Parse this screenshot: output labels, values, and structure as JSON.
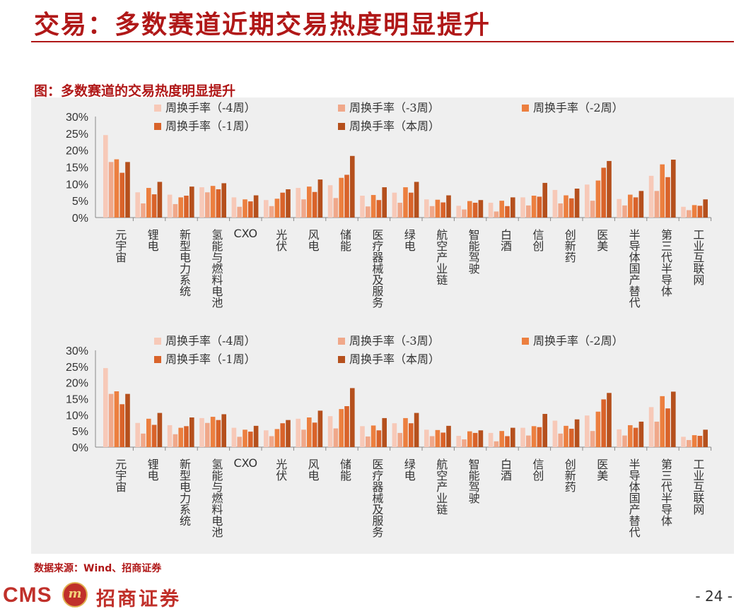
{
  "header": {
    "title": "交易：多数赛道近期交易热度明显提升"
  },
  "figure": {
    "title": "图：多数赛道的交易热度明显提升"
  },
  "footer": {
    "source": "数据来源：Wind、招商证券",
    "logo_text": "CMS",
    "logo_emblem": "m",
    "logo_cn": "招商证券",
    "page": "- 24 -"
  },
  "colors": {
    "title_red": "#b01818",
    "series": [
      "#f7c9b8",
      "#f0a88a",
      "#ec7f3f",
      "#d9632a",
      "#b5501d"
    ]
  },
  "chart_data": [
    {
      "type": "bar",
      "title": "",
      "xlabel": "",
      "ylabel": "",
      "ylim": [
        0,
        30
      ],
      "yticks": [
        "0%",
        "5%",
        "10%",
        "15%",
        "20%",
        "25%",
        "30%"
      ],
      "grid": false,
      "legend": "top",
      "categories": [
        "元宇宙",
        "锂电",
        "新型电力系统",
        "氢能与燃料电池",
        "CXO",
        "光伏",
        "风电",
        "储能",
        "医疗器械及服务",
        "绿电",
        "航空产业链",
        "智能驾驶",
        "白酒",
        "信创",
        "创新药",
        "医美",
        "半导体国产替代",
        "第三代半导体",
        "工业互联网"
      ],
      "series": [
        {
          "name": "周换手率（-4周）",
          "values": [
            24.5,
            7.5,
            6.8,
            9.0,
            6.0,
            5.2,
            8.8,
            9.6,
            6.5,
            7.4,
            5.4,
            3.5,
            4.4,
            6.0,
            8.2,
            9.8,
            5.5,
            12.4,
            3.2
          ]
        },
        {
          "name": "周换手率（-3周）",
          "values": [
            16.5,
            4.2,
            4.0,
            7.5,
            3.2,
            3.4,
            5.4,
            5.8,
            3.3,
            4.4,
            3.4,
            2.4,
            1.8,
            3.6,
            4.2,
            5.0,
            3.6,
            7.9,
            2.2
          ]
        },
        {
          "name": "周换手率（-2周）",
          "values": [
            17.3,
            8.8,
            6.0,
            9.4,
            5.4,
            5.6,
            9.2,
            11.8,
            6.7,
            9.0,
            5.3,
            4.9,
            5.0,
            6.5,
            6.6,
            11.0,
            6.8,
            15.8,
            3.7
          ]
        },
        {
          "name": "周换手率（-1周）",
          "values": [
            13.3,
            6.9,
            6.5,
            8.4,
            4.8,
            7.4,
            7.6,
            12.7,
            5.2,
            7.4,
            4.5,
            4.4,
            3.4,
            6.2,
            5.7,
            14.8,
            6.0,
            12.0,
            3.5
          ]
        },
        {
          "name": "周换手率（本周）",
          "values": [
            16.5,
            10.6,
            9.2,
            10.2,
            6.6,
            8.4,
            11.3,
            18.3,
            9.0,
            10.6,
            6.6,
            5.2,
            6.0,
            10.3,
            8.6,
            16.8,
            7.9,
            17.2,
            5.4
          ]
        }
      ]
    },
    {
      "type": "bar",
      "title": "",
      "xlabel": "",
      "ylabel": "",
      "ylim": [
        0,
        30
      ],
      "yticks": [
        "0%",
        "5%",
        "10%",
        "15%",
        "20%",
        "25%",
        "30%"
      ],
      "grid": false,
      "legend": "top",
      "categories": [
        "元宇宙",
        "锂电",
        "新型电力系统",
        "氢能与燃料电池",
        "CXO",
        "光伏",
        "风电",
        "储能",
        "医疗器械及服务",
        "绿电",
        "航空产业链",
        "智能驾驶",
        "白酒",
        "信创",
        "创新药",
        "医美",
        "半导体国产替代",
        "第三代半导体",
        "工业互联网"
      ],
      "series": [
        {
          "name": "周换手率（-4周）",
          "values": [
            24.5,
            7.5,
            6.8,
            9.0,
            6.0,
            5.2,
            8.8,
            9.6,
            6.5,
            7.4,
            5.4,
            3.5,
            4.4,
            6.0,
            8.2,
            9.8,
            5.5,
            12.4,
            3.2
          ]
        },
        {
          "name": "周换手率（-3周）",
          "values": [
            16.5,
            4.2,
            4.0,
            7.5,
            3.2,
            3.4,
            5.4,
            5.8,
            3.3,
            4.4,
            3.4,
            2.4,
            1.8,
            3.6,
            4.2,
            5.0,
            3.6,
            7.9,
            2.2
          ]
        },
        {
          "name": "周换手率（-2周）",
          "values": [
            17.3,
            8.8,
            6.0,
            9.4,
            5.4,
            5.6,
            9.2,
            11.8,
            6.7,
            9.0,
            5.3,
            4.9,
            5.0,
            6.5,
            6.6,
            11.0,
            6.8,
            15.8,
            3.7
          ]
        },
        {
          "name": "周换手率（-1周）",
          "values": [
            13.3,
            6.9,
            6.5,
            8.4,
            4.8,
            7.4,
            7.6,
            12.7,
            5.2,
            7.4,
            4.5,
            4.4,
            3.4,
            6.2,
            5.7,
            14.8,
            6.0,
            12.0,
            3.5
          ]
        },
        {
          "name": "周换手率（本周）",
          "values": [
            16.5,
            10.6,
            9.2,
            10.2,
            6.6,
            8.4,
            11.3,
            18.3,
            9.0,
            10.6,
            6.6,
            5.2,
            6.0,
            10.3,
            8.6,
            16.8,
            7.9,
            17.2,
            5.4
          ]
        }
      ]
    }
  ]
}
